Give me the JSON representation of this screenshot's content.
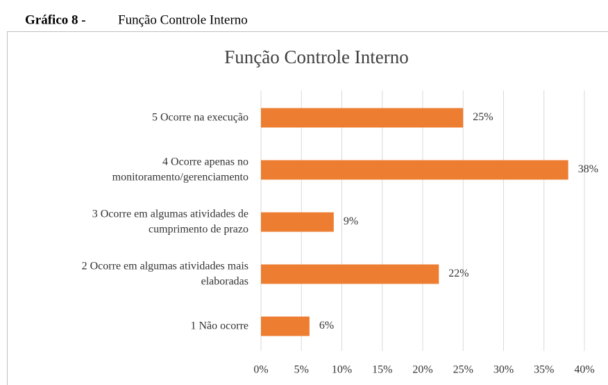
{
  "chart_data": {
    "type": "barh",
    "caption": {
      "label": "Gráfico 8 -",
      "text": "Função Controle Interno"
    },
    "title": "Função Controle Interno",
    "categories": [
      "5 Ocorre na execução",
      "4 Ocorre apenas no\nmonitoramento/gerenciamento",
      "3 Ocorre em algumas atividades de\ncumprimento de prazo",
      "2 Ocorre em algumas atividades mais\nelaboradas",
      "1 Não ocorre"
    ],
    "values": [
      25,
      38,
      9,
      22,
      6
    ],
    "value_labels": [
      "25%",
      "38%",
      "9%",
      "22%",
      "6%"
    ],
    "color": "#ed7d31",
    "xlim": [
      0,
      40
    ],
    "xticks": [
      {
        "value": 0,
        "label": "0%"
      },
      {
        "value": 5,
        "label": "5%"
      },
      {
        "value": 10,
        "label": "10%"
      },
      {
        "value": 15,
        "label": "15%"
      },
      {
        "value": 20,
        "label": "20%"
      },
      {
        "value": 25,
        "label": "25%"
      },
      {
        "value": 30,
        "label": "30%"
      },
      {
        "value": 35,
        "label": "35%"
      },
      {
        "value": 40,
        "label": "40%"
      }
    ],
    "grid": true
  }
}
